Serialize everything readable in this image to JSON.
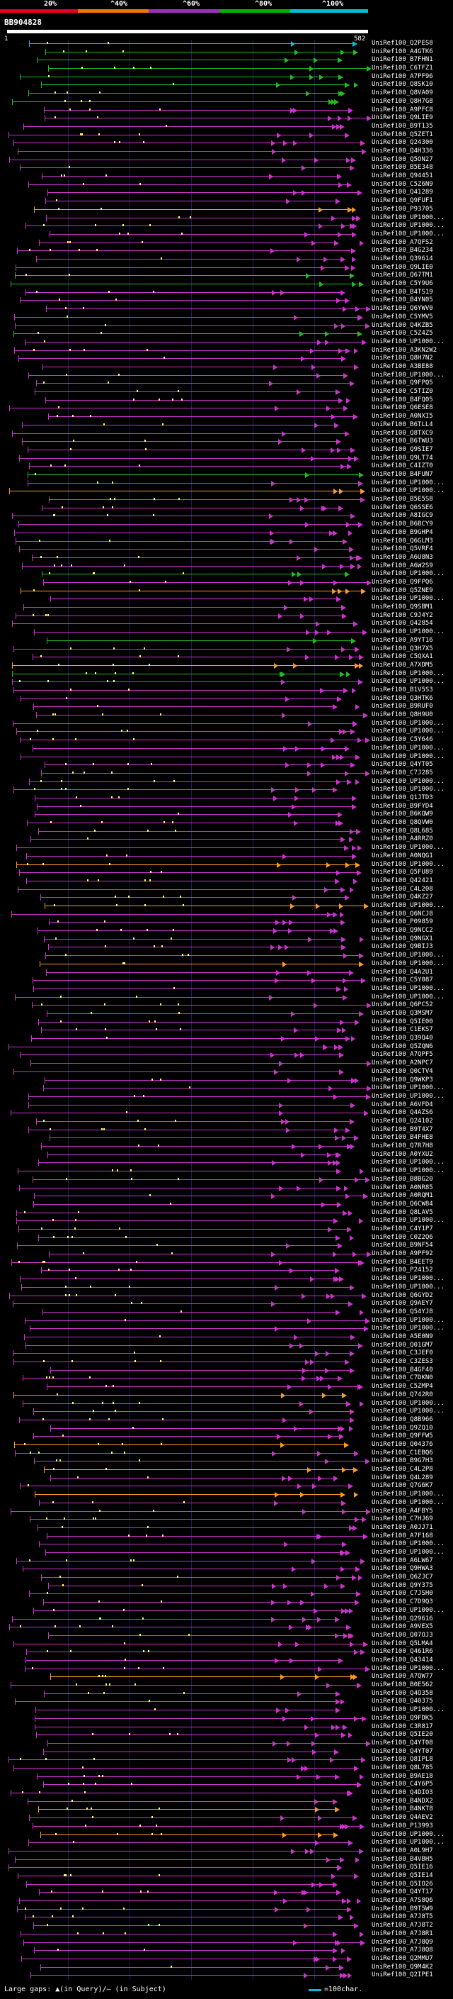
{
  "legend": {
    "labels": [
      "20%",
      "^40%",
      "^60%",
      "^80%",
      "^100%"
    ],
    "colors": [
      "#e8001c",
      "#ee7700",
      "#9c2fb8",
      "#00b000",
      "#00bcd4"
    ]
  },
  "header": {
    "query_id": "BB904828"
  },
  "query": {
    "start_label": "1",
    "end_label": "582"
  },
  "colors": {
    "magenta": "#cc33cc",
    "orange": "#ff9a22",
    "green": "#22bb22",
    "cyan": "#00c0e0",
    "purple_dark": "#7a2a80",
    "gap": "#ffff66"
  },
  "hits": [
    {
      "label": "UniRef100_Q2PES8",
      "color": "cyan"
    },
    {
      "label": "UniRef100_A4GTK6",
      "color": "green"
    },
    {
      "label": "UniRef100_B7FHN1",
      "color": "green"
    },
    {
      "label": "UniRef100_C6TFZ1",
      "color": "green"
    },
    {
      "label": "UniRef100_A7PF96",
      "color": "green"
    },
    {
      "label": "UniRef100_Q8SK10",
      "color": "green"
    },
    {
      "label": "UniRef100_Q8VA09",
      "color": "green"
    },
    {
      "label": "UniRef100_Q8H7G8",
      "color": "green"
    },
    {
      "label": "UniRef100_A9PFC8",
      "color": "magenta"
    },
    {
      "label": "UniRef100_Q9LIE9",
      "color": "magenta"
    },
    {
      "label": "UniRef100_B9T135",
      "color": "magenta"
    },
    {
      "label": "UniRef100_Q5ZET1",
      "color": "magenta"
    },
    {
      "label": "UniRef100_Q24300",
      "color": "magenta"
    },
    {
      "label": "UniRef100_Q4H336",
      "color": "magenta"
    },
    {
      "label": "UniRef100_Q5ON27",
      "color": "magenta"
    },
    {
      "label": "UniRef100_B5E348",
      "color": "magenta"
    },
    {
      "label": "UniRef100_Q94451",
      "color": "magenta"
    },
    {
      "label": "UniRef100_C5Z6N9",
      "color": "magenta"
    },
    {
      "label": "UniRef100_Q41289",
      "color": "magenta"
    },
    {
      "label": "UniRef100_Q9FUF1",
      "color": "magenta"
    },
    {
      "label": "UniRef100_P93705",
      "color": "orange"
    },
    {
      "label": "UniRef100_UP1000...",
      "color": "magenta"
    },
    {
      "label": "UniRef100_UP1000...",
      "color": "magenta"
    },
    {
      "label": "UniRef100_UP1000...",
      "color": "magenta"
    },
    {
      "label": "UniRef100_A7QFS2",
      "color": "magenta"
    },
    {
      "label": "UniRef100_B4G234",
      "color": "magenta"
    },
    {
      "label": "UniRef100_Q39614",
      "color": "magenta"
    },
    {
      "label": "UniRef100_Q9LIE0",
      "color": "magenta"
    },
    {
      "label": "UniRef100_Q67TM1",
      "color": "green"
    },
    {
      "label": "UniRef100_C5Y9U6",
      "color": "green"
    },
    {
      "label": "UniRef100_B4TS19",
      "color": "magenta"
    },
    {
      "label": "UniRef100_B4YN05",
      "color": "magenta"
    },
    {
      "label": "UniRef100_Q6YWV0",
      "color": "magenta"
    },
    {
      "label": "UniRef100_C5YMV5",
      "color": "magenta"
    },
    {
      "label": "UniRef100_Q4KZB5",
      "color": "magenta"
    },
    {
      "label": "UniRef100_C5Z4Z5",
      "color": "green"
    },
    {
      "label": "UniRef100_UP1000...",
      "color": "magenta"
    },
    {
      "label": "UniRef100_A3KN2W2",
      "color": "magenta"
    },
    {
      "label": "UniRef100_Q8H7N2",
      "color": "magenta"
    },
    {
      "label": "UniRef100_A3BE88",
      "color": "magenta"
    },
    {
      "label": "UniRef100_UP1000...",
      "color": "magenta"
    },
    {
      "label": "UniRef100_Q9FPQ5",
      "color": "magenta"
    },
    {
      "label": "UniRef100_C5TIZ0",
      "color": "magenta"
    },
    {
      "label": "UniRef100_B4FQ05",
      "color": "magenta"
    },
    {
      "label": "UniRef100_Q6ESE8",
      "color": "magenta"
    },
    {
      "label": "UniRef100_A0NXI5",
      "color": "magenta"
    },
    {
      "label": "UniRef100_B6TLL4",
      "color": "magenta"
    },
    {
      "label": "UniRef100_Q8TXC9",
      "color": "magenta"
    },
    {
      "label": "UniRef100_B6TWU3",
      "color": "magenta"
    },
    {
      "label": "UniRef100_Q9SIE7",
      "color": "magenta"
    },
    {
      "label": "UniRef100_Q9LT74",
      "color": "magenta"
    },
    {
      "label": "UniRef100_C4IZT0",
      "color": "magenta"
    },
    {
      "label": "UniRef100_B4FUN7",
      "color": "green"
    },
    {
      "label": "UniRef100_UP1000...",
      "color": "magenta"
    },
    {
      "label": "UniRef100_UP1000...",
      "color": "orange"
    },
    {
      "label": "UniRef100_B5E5S8",
      "color": "magenta"
    },
    {
      "label": "UniRef100_Q6SSE6",
      "color": "magenta"
    },
    {
      "label": "UniRef100_A8IGC9",
      "color": "magenta"
    },
    {
      "label": "UniRef100_B6BCY9",
      "color": "magenta"
    },
    {
      "label": "UniRef100_B9GHP4",
      "color": "magenta"
    },
    {
      "label": "UniRef100_Q6GLM3",
      "color": "magenta"
    },
    {
      "label": "UniRef100_Q5VRF4",
      "color": "magenta"
    },
    {
      "label": "UniRef100_A6U8N3",
      "color": "magenta"
    },
    {
      "label": "UniRef100_A6W2S9",
      "color": "magenta"
    },
    {
      "label": "UniRef100_UP1000...",
      "color": "green"
    },
    {
      "label": "UniRef100_Q9FPQ6",
      "color": "magenta"
    },
    {
      "label": "UniRef100_Q5ZNE9",
      "color": "orange"
    },
    {
      "label": "UniRef100_UP1000...",
      "color": "magenta"
    },
    {
      "label": "UniRef100_Q9SBM1",
      "color": "magenta"
    },
    {
      "label": "UniRef100_C9J4Y2",
      "color": "magenta"
    },
    {
      "label": "UniRef100_Q42854",
      "color": "magenta"
    },
    {
      "label": "UniRef100_UP1000...",
      "color": "magenta"
    },
    {
      "label": "UniRef100_A9YT16",
      "color": "green"
    },
    {
      "label": "UniRef100_Q3H7X5",
      "color": "magenta"
    },
    {
      "label": "UniRef100_C5QXA1",
      "color": "magenta"
    },
    {
      "label": "UniRef100_A7XDM5",
      "color": "orange"
    },
    {
      "label": "UniRef100_UP1000...",
      "color": "green"
    },
    {
      "label": "UniRef100_UP1000...",
      "color": "magenta"
    },
    {
      "label": "UniRef100_B1V5S3",
      "color": "magenta"
    },
    {
      "label": "UniRef100_Q3HTK6",
      "color": "magenta"
    },
    {
      "label": "UniRef100_B9RUF0",
      "color": "magenta"
    },
    {
      "label": "UniRef100_Q8H9U0",
      "color": "magenta"
    },
    {
      "label": "UniRef100_UP1000...",
      "color": "magenta"
    },
    {
      "label": "UniRef100_UP1000...",
      "color": "magenta"
    },
    {
      "label": "UniRef100_C5Y646",
      "color": "magenta"
    },
    {
      "label": "UniRef100_UP1000...",
      "color": "magenta"
    },
    {
      "label": "UniRef100_UP1000...",
      "color": "magenta"
    },
    {
      "label": "UniRef100_Q4YT05",
      "color": "magenta"
    },
    {
      "label": "UniRef100_C7J285",
      "color": "magenta"
    },
    {
      "label": "UniRef100_UP1000...",
      "color": "magenta"
    },
    {
      "label": "UniRef100_UP1000...",
      "color": "magenta"
    },
    {
      "label": "UniRef100_Q1JTD3",
      "color": "magenta"
    },
    {
      "label": "UniRef100_B9FYD4",
      "color": "magenta"
    },
    {
      "label": "UniRef100_B6KQW9",
      "color": "magenta"
    },
    {
      "label": "UniRef100_Q8QVW0",
      "color": "magenta"
    },
    {
      "label": "UniRef100_Q8L685",
      "color": "magenta"
    },
    {
      "label": "UniRef100_A4RRZ0",
      "color": "magenta"
    },
    {
      "label": "UniRef100_UP1000...",
      "color": "magenta"
    },
    {
      "label": "UniRef100_A0NQG1",
      "color": "magenta"
    },
    {
      "label": "UniRef100_UP1000...",
      "color": "orange"
    },
    {
      "label": "UniRef100_Q5FU89",
      "color": "magenta"
    },
    {
      "label": "UniRef100_Q42421",
      "color": "magenta"
    },
    {
      "label": "UniRef100_C4L208",
      "color": "magenta"
    },
    {
      "label": "UniRef100_Q4KZ27",
      "color": "magenta"
    },
    {
      "label": "UniRef100_UP1000...",
      "color": "orange"
    },
    {
      "label": "UniRef100_Q6NCJ8",
      "color": "magenta"
    },
    {
      "label": "UniRef100_P09859",
      "color": "magenta"
    },
    {
      "label": "UniRef100_Q9NCC2",
      "color": "magenta"
    },
    {
      "label": "UniRef100_Q9NGX1",
      "color": "magenta"
    },
    {
      "label": "UniRef100_Q9BIJ3",
      "color": "magenta"
    },
    {
      "label": "UniRef100_UP1000...",
      "color": "magenta"
    },
    {
      "label": "UniRef100_UP1000...",
      "color": "orange"
    },
    {
      "label": "UniRef100_Q4A2U1",
      "color": "magenta"
    },
    {
      "label": "UniRef100_C5Y087",
      "color": "magenta"
    },
    {
      "label": "UniRef100_UP1000...",
      "color": "magenta"
    },
    {
      "label": "UniRef100_UP1000...",
      "color": "magenta"
    },
    {
      "label": "UniRef100_Q6PC52",
      "color": "magenta"
    },
    {
      "label": "UniRef100_Q3MSM7",
      "color": "magenta"
    },
    {
      "label": "UniRef100_Q5IE00",
      "color": "magenta"
    },
    {
      "label": "UniRef100_C1EKS7",
      "color": "magenta"
    },
    {
      "label": "UniRef100_Q39Q40",
      "color": "magenta"
    },
    {
      "label": "UniRef100_Q5ZQN6",
      "color": "magenta"
    },
    {
      "label": "UniRef100_A7QPF5",
      "color": "magenta"
    },
    {
      "label": "UniRef100_A2NPC7",
      "color": "magenta"
    },
    {
      "label": "UniRef100_Q0CTV4",
      "color": "magenta"
    },
    {
      "label": "UniRef100_Q9WKP3",
      "color": "magenta"
    },
    {
      "label": "UniRef100_UP1000...",
      "color": "magenta"
    },
    {
      "label": "UniRef100_UP1000...",
      "color": "magenta"
    },
    {
      "label": "UniRef100_A6VFD4",
      "color": "magenta"
    },
    {
      "label": "UniRef100_Q4AZS6",
      "color": "magenta"
    },
    {
      "label": "UniRef100_Q24102",
      "color": "magenta"
    },
    {
      "label": "UniRef100_B9T4X7",
      "color": "magenta"
    },
    {
      "label": "UniRef100_B4FHE8",
      "color": "magenta"
    },
    {
      "label": "UniRef100_Q7R7H8",
      "color": "magenta"
    },
    {
      "label": "UniRef100_A0YXU2",
      "color": "magenta"
    },
    {
      "label": "UniRef100_UP1000...",
      "color": "magenta"
    },
    {
      "label": "UniRef100_UP1000...",
      "color": "magenta"
    },
    {
      "label": "UniRef100_B8BG20",
      "color": "magenta"
    },
    {
      "label": "UniRef100_A0NR85",
      "color": "magenta"
    },
    {
      "label": "UniRef100_A0RQM1",
      "color": "magenta"
    },
    {
      "label": "UniRef100_Q6CW84",
      "color": "magenta"
    },
    {
      "label": "UniRef100_Q8LAV5",
      "color": "magenta"
    },
    {
      "label": "UniRef100_UP1000...",
      "color": "magenta"
    },
    {
      "label": "UniRef100_C4Y1P7",
      "color": "magenta"
    },
    {
      "label": "UniRef100_C0Z2Q6",
      "color": "magenta"
    },
    {
      "label": "UniRef100_B9NF54",
      "color": "magenta"
    },
    {
      "label": "UniRef100_A9PF92",
      "color": "magenta"
    },
    {
      "label": "UniRef100_B4EET9",
      "color": "magenta"
    },
    {
      "label": "UniRef100_P24152",
      "color": "magenta"
    },
    {
      "label": "UniRef100_UP1000...",
      "color": "magenta"
    },
    {
      "label": "UniRef100_UP1000...",
      "color": "magenta"
    },
    {
      "label": "UniRef100_Q6GYD2",
      "color": "magenta"
    },
    {
      "label": "UniRef100_Q9AEY7",
      "color": "magenta"
    },
    {
      "label": "UniRef100_Q54YJ8",
      "color": "magenta"
    },
    {
      "label": "UniRef100_UP1000...",
      "color": "magenta"
    },
    {
      "label": "UniRef100_UP1000...",
      "color": "magenta"
    },
    {
      "label": "UniRef100_A5E0N9",
      "color": "magenta"
    },
    {
      "label": "UniRef100_Q01GM7",
      "color": "magenta"
    },
    {
      "label": "UniRef100_C3JEF0",
      "color": "magenta"
    },
    {
      "label": "UniRef100_C3ZES3",
      "color": "magenta"
    },
    {
      "label": "UniRef100_B4GF40",
      "color": "magenta"
    },
    {
      "label": "UniRef100_C7DKN0",
      "color": "magenta"
    },
    {
      "label": "UniRef100_C5ZMP4",
      "color": "magenta"
    },
    {
      "label": "UniRef100_Q742R0",
      "color": "orange"
    },
    {
      "label": "UniRef100_UP1000...",
      "color": "magenta"
    },
    {
      "label": "UniRef100_UP1000...",
      "color": "magenta"
    },
    {
      "label": "UniRef100_Q8B966",
      "color": "magenta"
    },
    {
      "label": "UniRef100_Q9ZQ10",
      "color": "magenta"
    },
    {
      "label": "UniRef100_Q9FFW5",
      "color": "magenta"
    },
    {
      "label": "UniRef100_Q04376",
      "color": "orange"
    },
    {
      "label": "UniRef100_C1EBQ6",
      "color": "magenta"
    },
    {
      "label": "UniRef100_B9G7H3",
      "color": "magenta"
    },
    {
      "label": "UniRef100_C4L2P8",
      "color": "orange"
    },
    {
      "label": "UniRef100_Q4L289",
      "color": "magenta"
    },
    {
      "label": "UniRef100_Q7G6K7",
      "color": "magenta"
    },
    {
      "label": "UniRef100_UP1000...",
      "color": "orange"
    },
    {
      "label": "UniRef100_UP1000...",
      "color": "magenta"
    },
    {
      "label": "UniRef100_A4FBY5",
      "color": "magenta"
    },
    {
      "label": "UniRef100_C7HJ69",
      "color": "magenta"
    },
    {
      "label": "UniRef100_A0JJ71",
      "color": "magenta"
    },
    {
      "label": "UniRef100_A7F168",
      "color": "magenta"
    },
    {
      "label": "UniRef100_UP1000...",
      "color": "magenta"
    },
    {
      "label": "UniRef100_UP1000...",
      "color": "magenta"
    },
    {
      "label": "UniRef100_A6LW67",
      "color": "magenta"
    },
    {
      "label": "UniRef100_Q9HWA3",
      "color": "magenta"
    },
    {
      "label": "UniRef100_Q6ZJC7",
      "color": "magenta"
    },
    {
      "label": "UniRef100_Q9Y375",
      "color": "magenta"
    },
    {
      "label": "UniRef100_C7JSH0",
      "color": "magenta"
    },
    {
      "label": "UniRef100_C7D9Q3",
      "color": "magenta"
    },
    {
      "label": "UniRef100_UP1000...",
      "color": "magenta"
    },
    {
      "label": "UniRef100_Q29616",
      "color": "magenta"
    },
    {
      "label": "UniRef100_A9VEX5",
      "color": "magenta"
    },
    {
      "label": "UniRef100_Q07OJ3",
      "color": "magenta"
    },
    {
      "label": "UniRef100_Q5LMA4",
      "color": "magenta"
    },
    {
      "label": "UniRef100_Q461R6",
      "color": "magenta"
    },
    {
      "label": "UniRef100_Q43414",
      "color": "magenta"
    },
    {
      "label": "UniRef100_UP1000...",
      "color": "magenta"
    },
    {
      "label": "UniRef100_A7QW77",
      "color": "orange"
    },
    {
      "label": "UniRef100_B0E562",
      "color": "magenta"
    },
    {
      "label": "UniRef100_Q4O358",
      "color": "magenta"
    },
    {
      "label": "UniRef100_Q40375",
      "color": "magenta"
    },
    {
      "label": "UniRef100_UP1000...",
      "color": "magenta"
    },
    {
      "label": "UniRef100_Q9FDK5",
      "color": "magenta"
    },
    {
      "label": "UniRef100_C3R817",
      "color": "magenta"
    },
    {
      "label": "UniRef100_Q5IE20",
      "color": "magenta"
    },
    {
      "label": "UniRef100_Q4YT08",
      "color": "magenta"
    },
    {
      "label": "UniRef100_Q4YT07",
      "color": "magenta"
    },
    {
      "label": "UniRef100_Q8IPL8",
      "color": "magenta"
    },
    {
      "label": "UniRef100_Q8L785",
      "color": "magenta"
    },
    {
      "label": "UniRef100_B9AE18",
      "color": "magenta"
    },
    {
      "label": "UniRef100_C4Y6P5",
      "color": "magenta"
    },
    {
      "label": "UniRef100_Q4DIO3",
      "color": "magenta"
    },
    {
      "label": "UniRef100_B4NDX2",
      "color": "magenta"
    },
    {
      "label": "UniRef100_B4NKT8",
      "color": "orange"
    },
    {
      "label": "UniRef100_Q4AEV2",
      "color": "magenta"
    },
    {
      "label": "UniRef100_P13993",
      "color": "magenta"
    },
    {
      "label": "UniRef100_UP1000...",
      "color": "orange"
    },
    {
      "label": "UniRef100_UP1000...",
      "color": "magenta"
    },
    {
      "label": "UniRef100_A0L9H7",
      "color": "magenta"
    },
    {
      "label": "UniRef100_B4VBH5",
      "color": "magenta"
    },
    {
      "label": "UniRef100_Q5IE16",
      "color": "magenta"
    },
    {
      "label": "UniRef100_Q5IE14",
      "color": "magenta"
    },
    {
      "label": "UniRef100_Q5IO26",
      "color": "magenta"
    },
    {
      "label": "UniRef100_Q4YT17",
      "color": "magenta"
    },
    {
      "label": "UniRef100_A7S8Q6",
      "color": "magenta"
    },
    {
      "label": "UniRef100_B9T5W9",
      "color": "magenta"
    },
    {
      "label": "UniRef100_A7J8T5",
      "color": "magenta"
    },
    {
      "label": "UniRef100_A7J8T2",
      "color": "magenta"
    },
    {
      "label": "UniRef100_A7J8R1",
      "color": "magenta"
    },
    {
      "label": "UniRef100_A7J8Q9",
      "color": "magenta"
    },
    {
      "label": "UniRef100_A7J8Q8",
      "color": "magenta"
    },
    {
      "label": "UniRef100_Q2MMU7",
      "color": "magenta"
    },
    {
      "label": "UniRef100_Q9M4K2",
      "color": "magenta"
    },
    {
      "label": "UniRef100_Q2IPE1",
      "color": "magenta"
    }
  ],
  "footer": {
    "large_gaps_text": "Large gaps: ▲(in Query)/‒ (in Subject)",
    "scale_text": "=100char."
  }
}
